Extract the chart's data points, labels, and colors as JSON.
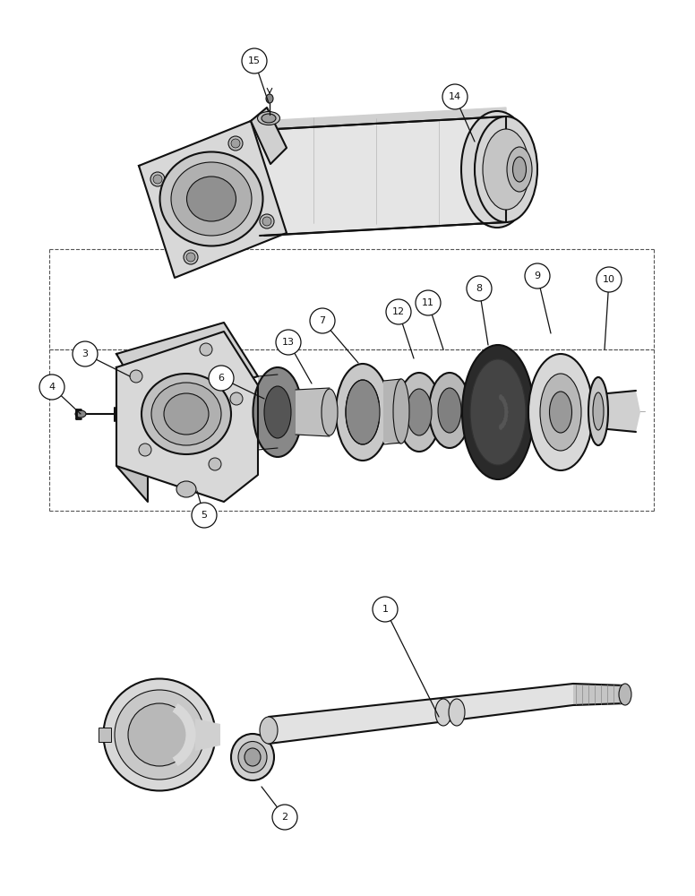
{
  "bg_color": "#ffffff",
  "line_color": "#111111",
  "fig_width": 7.76,
  "fig_height": 10.0,
  "dpi": 100,
  "gray_light": "#e8e8e8",
  "gray_mid": "#b0b0b0",
  "gray_dark": "#666666",
  "gray_very_dark": "#333333"
}
